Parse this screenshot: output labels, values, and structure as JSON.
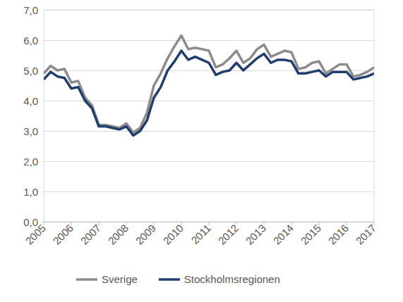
{
  "chart_data": {
    "type": "line",
    "categories": [
      "2005",
      null,
      null,
      null,
      "2006",
      null,
      null,
      null,
      "2007",
      null,
      null,
      null,
      "2008",
      null,
      null,
      null,
      "2009",
      null,
      null,
      null,
      "2010",
      null,
      null,
      null,
      "2011",
      null,
      null,
      null,
      "2012",
      null,
      null,
      null,
      "2013",
      null,
      null,
      null,
      "2014",
      null,
      null,
      null,
      "2015",
      null,
      null,
      null,
      "2016",
      null,
      null,
      null,
      "2017"
    ],
    "series": [
      {
        "name": "Sverige",
        "color": "#8c8c8c",
        "values": [
          4.9,
          5.15,
          5.0,
          5.05,
          4.6,
          4.65,
          4.1,
          3.85,
          3.2,
          3.2,
          3.15,
          3.1,
          3.25,
          2.95,
          3.1,
          3.6,
          4.5,
          4.9,
          5.4,
          5.8,
          6.15,
          5.7,
          5.75,
          5.7,
          5.65,
          5.1,
          5.2,
          5.4,
          5.65,
          5.25,
          5.4,
          5.7,
          5.85,
          5.45,
          5.55,
          5.65,
          5.6,
          5.05,
          5.1,
          5.25,
          5.3,
          4.9,
          5.05,
          5.2,
          5.2,
          4.8,
          4.85,
          4.95,
          5.1
        ]
      },
      {
        "name": "Stockholmsregionen",
        "color": "#1f3e6e",
        "values": [
          4.7,
          4.95,
          4.8,
          4.75,
          4.4,
          4.45,
          4.0,
          3.75,
          3.15,
          3.15,
          3.1,
          3.05,
          3.15,
          2.85,
          3.0,
          3.35,
          4.1,
          4.45,
          5.0,
          5.3,
          5.65,
          5.35,
          5.45,
          5.35,
          5.25,
          4.85,
          4.95,
          5.0,
          5.25,
          5.0,
          5.2,
          5.4,
          5.55,
          5.25,
          5.35,
          5.35,
          5.3,
          4.9,
          4.9,
          4.95,
          5.0,
          4.8,
          4.95,
          4.95,
          4.95,
          4.7,
          4.75,
          4.8,
          4.9
        ]
      }
    ],
    "ylim": [
      0,
      7
    ],
    "yticks": [
      {
        "value": 0,
        "label": "0,0"
      },
      {
        "value": 1,
        "label": "1,0"
      },
      {
        "value": 2,
        "label": "2,0"
      },
      {
        "value": 3,
        "label": "3,0"
      },
      {
        "value": 4,
        "label": "4,0"
      },
      {
        "value": 5,
        "label": "5,0"
      },
      {
        "value": 6,
        "label": "6,0"
      },
      {
        "value": 7,
        "label": "7,0"
      }
    ],
    "grid": true,
    "legend": "bottom"
  }
}
